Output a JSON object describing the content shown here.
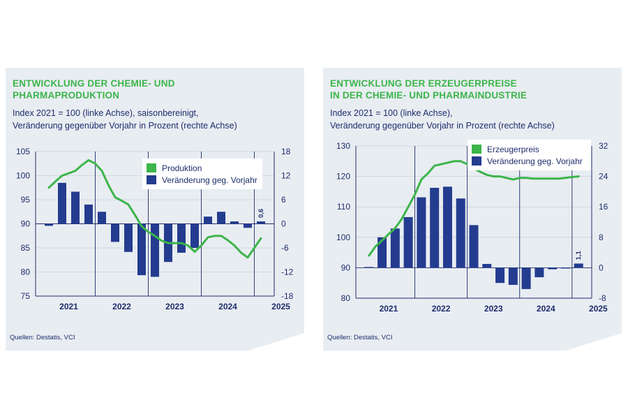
{
  "panels": [
    {
      "title": "ENTWICKLUNG DER CHEMIE- UND\nPHARMAPRODUKTION",
      "subtitle": "Index 2021 = 100 (linke Achse), saisonbereinigt,\nVeränderung gegenüber Vorjahr in Prozent (rechte Achse)",
      "source": "Quellen: Destatis, VCI"
    },
    {
      "title": "ENTWICKLUNG DER ERZEUGERPREISE\nIN DER CHEMIE- UND PHARMAINDUSTRIE",
      "subtitle": "Index 2021 = 100 (linke Achse),\nVeränderung gegenüber Vorjahr in Prozent (rechte Achse)",
      "source": "Quellen: Destatis, VCI"
    }
  ],
  "colors": {
    "line": "#3cb54a",
    "bar": "#243c8f",
    "text": "#1e2c6b",
    "title": "#3cb54a",
    "background": "#e8edf2"
  },
  "chart_data": [
    {
      "type": "bar+line",
      "title": "ENTWICKLUNG DER CHEMIE- UND PHARMAPRODUKTION",
      "x": [
        "2021-Q1",
        "2021-Q2",
        "2021-Q3",
        "2021-Q4",
        "2022-Q1",
        "2022-Q2",
        "2022-Q3",
        "2022-Q4",
        "2023-Q1",
        "2023-Q2",
        "2023-Q3",
        "2023-Q4",
        "2024-Q1",
        "2024-Q2",
        "2024-Q3",
        "2024-Q4",
        "2025-Q1"
      ],
      "x_tick_labels": [
        "2021",
        "2022",
        "2023",
        "2024",
        "2025"
      ],
      "left_axis": {
        "ylim": [
          75,
          105
        ],
        "ticks": [
          75,
          80,
          85,
          90,
          95,
          100,
          105
        ]
      },
      "right_axis": {
        "ylim": [
          -18,
          18
        ],
        "ticks": [
          -18,
          -12,
          -6,
          0,
          6,
          12,
          18
        ]
      },
      "line": {
        "name": "Produktion",
        "axis": "left",
        "x": [
          0.0,
          0.5,
          1.0,
          1.5,
          2.0,
          2.5,
          3.0,
          3.5,
          4.0,
          4.5,
          5.0,
          5.5,
          6.0,
          6.5,
          7.0,
          7.5,
          8.0,
          8.5,
          9.0,
          9.5,
          10.0,
          10.5,
          11.0,
          11.5,
          12.0,
          12.5,
          13.0,
          13.5,
          14.0,
          14.5,
          15.0,
          15.5,
          16.0
        ],
        "y": [
          97.5,
          98.8,
          100.0,
          100.5,
          101.0,
          102.2,
          103.2,
          102.5,
          101.0,
          98.0,
          95.5,
          94.8,
          94.0,
          91.8,
          89.5,
          88.3,
          87.5,
          86.5,
          86.0,
          86.0,
          86.0,
          85.5,
          84.2,
          85.5,
          87.2,
          87.5,
          87.5,
          86.6,
          85.5,
          84.0,
          83.0,
          85.0,
          87.0
        ]
      },
      "bars": {
        "name": "Veränderung geg. Vorjahr",
        "axis": "right",
        "values": [
          -0.5,
          10.2,
          8.0,
          4.8,
          3.0,
          -4.5,
          -7.0,
          -12.8,
          -13.2,
          -9.5,
          -7.2,
          -6.0,
          1.8,
          3.0,
          0.6,
          -1.0,
          0.6
        ]
      },
      "annotations": [
        {
          "x_index": 16,
          "text": "0,6"
        }
      ],
      "legend": {
        "placement": "top-right",
        "entries": [
          "Produktion",
          "Veränderung geg. Vorjahr"
        ]
      },
      "grid": true
    },
    {
      "type": "bar+line",
      "title": "ENTWICKLUNG DER ERZEUGERPREISE IN DER CHEMIE- UND PHARMAINDUSTRIE",
      "x": [
        "2021-Q1",
        "2021-Q2",
        "2021-Q3",
        "2021-Q4",
        "2022-Q1",
        "2022-Q2",
        "2022-Q3",
        "2022-Q4",
        "2023-Q1",
        "2023-Q2",
        "2023-Q3",
        "2023-Q4",
        "2024-Q1",
        "2024-Q2",
        "2024-Q3",
        "2024-Q4",
        "2025-Q1"
      ],
      "x_tick_labels": [
        "2021",
        "2022",
        "2023",
        "2024",
        "2025"
      ],
      "left_axis": {
        "ylim": [
          80,
          130
        ],
        "ticks": [
          80,
          90,
          100,
          110,
          120,
          130
        ]
      },
      "right_axis": {
        "ylim": [
          -8,
          32
        ],
        "ticks": [
          -8,
          0,
          8,
          16,
          24,
          32
        ]
      },
      "line": {
        "name": "Erzeugerpreis",
        "axis": "left",
        "x": [
          0.0,
          0.5,
          1.0,
          1.5,
          2.0,
          2.5,
          3.0,
          3.5,
          4.0,
          4.5,
          5.0,
          5.5,
          6.0,
          6.5,
          7.0,
          7.5,
          8.0,
          8.5,
          9.0,
          9.5,
          10.0,
          10.5,
          11.0,
          11.5,
          12.0,
          12.5,
          13.0,
          13.5,
          14.0,
          14.5,
          15.0,
          15.5,
          16.0
        ],
        "y": [
          94.0,
          97.0,
          99.0,
          101.0,
          103.0,
          106.0,
          110.0,
          114.0,
          119.0,
          121.0,
          123.5,
          124.0,
          124.5,
          125.0,
          125.0,
          124.0,
          122.5,
          121.5,
          120.5,
          120.0,
          120.0,
          119.5,
          119.0,
          119.5,
          119.5,
          119.3,
          119.3,
          119.3,
          119.3,
          119.3,
          119.5,
          119.8,
          120.0
        ]
      },
      "bars": {
        "name": "Veränderung geg. Vorjahr",
        "axis": "right",
        "values": [
          0.2,
          8.0,
          10.3,
          13.3,
          18.5,
          21.0,
          21.3,
          18.2,
          11.2,
          1.0,
          -4.0,
          -4.5,
          -5.6,
          -2.5,
          -0.4,
          -0.2,
          1.1
        ]
      },
      "annotations": [
        {
          "x_index": 16,
          "text": "1,1"
        }
      ],
      "legend": {
        "placement": "top-right",
        "entries": [
          "Erzeugerpreis",
          "Veränderung geg. Vorjahr"
        ]
      },
      "grid": true
    }
  ]
}
